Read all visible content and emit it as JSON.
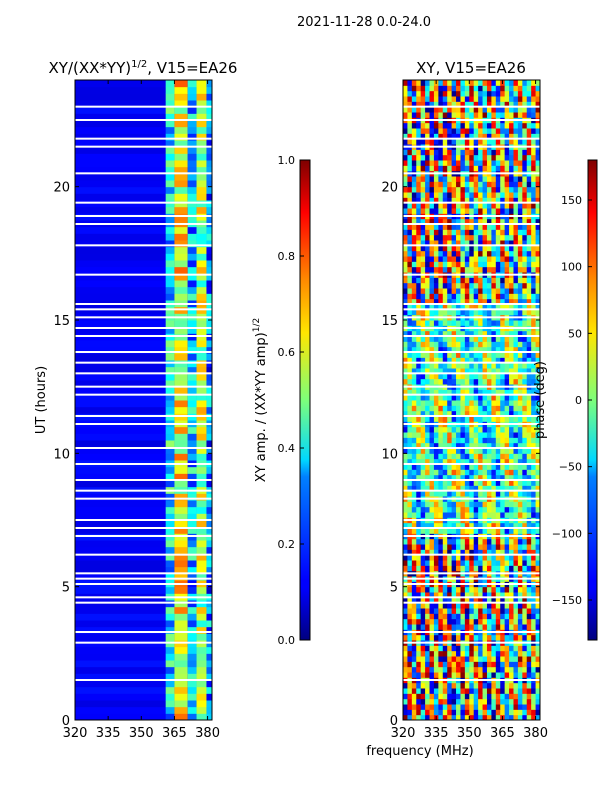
{
  "figure": {
    "suptitle": "2021-11-28 0.0-24.0",
    "common_xlabel": "frequency (MHz)"
  },
  "chart_data": [
    {
      "type": "heatmap",
      "title_main": "XY/(XX*YY)",
      "title_exp": "1/2",
      "title_tail": ", V15=EA26",
      "xlabel": "",
      "ylabel": "UT (hours)",
      "xlim": [
        320,
        382
      ],
      "ylim": [
        0,
        24
      ],
      "xticks": [
        320,
        335,
        350,
        365,
        380
      ],
      "yticks": [
        0,
        5,
        10,
        15,
        20
      ],
      "colorbar": {
        "label_main": "XY amp. / (XX*YY amp)",
        "label_exp": "1/2",
        "range": [
          0.0,
          1.0
        ],
        "ticks": [
          "0.0",
          "0.2",
          "0.4",
          "0.6",
          "0.8",
          "1.0"
        ],
        "colormap": "jet"
      },
      "background_value": 0.12,
      "band_values": [
        {
          "freq": [
            361.0,
            365.0
          ],
          "value": 0.35
        },
        {
          "freq": [
            365.0,
            371.0
          ],
          "value": 0.62
        },
        {
          "freq": [
            371.0,
            375.0
          ],
          "value": 0.3
        },
        {
          "freq": [
            375.0,
            379.5
          ],
          "value": 0.55
        },
        {
          "freq": [
            379.5,
            382.0
          ],
          "value": 0.25
        }
      ],
      "flagged_ut_hours": [
        1.5,
        2.9,
        3.3,
        4.4,
        4.6,
        5.1,
        5.3,
        5.5,
        6.2,
        6.9,
        7.2,
        7.5,
        8.3,
        8.6,
        9.0,
        9.6,
        10.2,
        11.1,
        11.4,
        12.2,
        12.5,
        13.0,
        13.4,
        13.8,
        14.4,
        14.7,
        15.1,
        15.4,
        15.6,
        16.7,
        17.8,
        18.6,
        18.9,
        19.4,
        20.5,
        21.5,
        21.8,
        22.5,
        23.0
      ]
    },
    {
      "type": "heatmap",
      "title": "XY, V15=EA26",
      "xlabel": "frequency (MHz)",
      "ylabel": "",
      "xlim": [
        320,
        382
      ],
      "ylim": [
        0,
        24
      ],
      "xticks": [
        320,
        335,
        350,
        365,
        380
      ],
      "yticks": [
        0,
        5,
        10,
        15,
        20
      ],
      "colorbar": {
        "label": "phase (deg)",
        "range": [
          -180,
          180
        ],
        "ticks": [
          "150",
          "100",
          "50",
          "0",
          "−50",
          "−100",
          "−150"
        ],
        "tick_values": [
          150,
          100,
          50,
          0,
          -50,
          -100,
          -150
        ],
        "colormap": "jet"
      },
      "flagged_ut_hours": [
        1.5,
        2.9,
        3.3,
        4.4,
        4.6,
        5.1,
        5.3,
        5.5,
        6.2,
        6.9,
        7.2,
        7.5,
        8.3,
        8.6,
        9.0,
        9.6,
        10.2,
        11.1,
        11.4,
        12.2,
        12.5,
        13.0,
        13.4,
        13.8,
        14.4,
        14.7,
        15.1,
        15.4,
        15.6,
        16.7,
        17.8,
        18.6,
        18.9,
        19.4,
        20.5,
        21.5,
        21.8,
        22.5,
        23.0
      ]
    }
  ]
}
